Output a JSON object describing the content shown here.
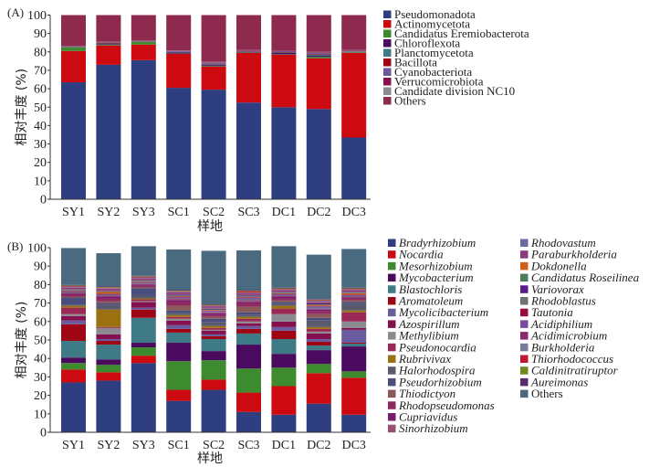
{
  "chart_data": [
    {
      "panel_label": "(A)",
      "type": "bar",
      "stacked": true,
      "title": "",
      "xlabel": "样地",
      "ylabel": "相对丰度 (%)",
      "ylim": [
        0,
        100
      ],
      "yticks": [
        0,
        10,
        20,
        30,
        40,
        50,
        60,
        70,
        80,
        90,
        100
      ],
      "categories": [
        "SY1",
        "SY2",
        "SY3",
        "SC1",
        "SC2",
        "SC3",
        "DC1",
        "DC2",
        "DC3"
      ],
      "legend_italic": false,
      "legend_position": "right",
      "series": [
        {
          "name": "Pseudomonadota",
          "color": "#2e3e80",
          "values": [
            63.5,
            73.0,
            75.5,
            60.5,
            59.5,
            52.5,
            50.0,
            49.0,
            33.5
          ]
        },
        {
          "name": "Actinomycetota",
          "color": "#cc0a0f",
          "values": [
            17.0,
            10.5,
            8.5,
            18.5,
            12.5,
            27.0,
            28.5,
            27.5,
            46.0
          ]
        },
        {
          "name": "Candidatus Eremiobacterota",
          "color": "#3e8a2e",
          "values": [
            2.0,
            0.4,
            1.5,
            0.1,
            0.3,
            0.2,
            0.2,
            0.8,
            0.3
          ]
        },
        {
          "name": "Chloroflexota",
          "color": "#4a0a5e",
          "values": [
            0.1,
            0.4,
            0.1,
            0.6,
            0.6,
            0.4,
            0.7,
            0.6,
            0.2
          ]
        },
        {
          "name": "Planctomycetota",
          "color": "#3f7b86",
          "values": [
            0.1,
            0.3,
            0.1,
            0.2,
            0.4,
            0.2,
            0.3,
            0.5,
            0.3
          ]
        },
        {
          "name": "Bacillota",
          "color": "#9e0613",
          "values": [
            0.1,
            0.4,
            0.1,
            0.1,
            0.3,
            0.3,
            0.2,
            0.3,
            0.3
          ]
        },
        {
          "name": "Cyanobacteriota",
          "color": "#6a5a9e",
          "values": [
            0.1,
            0.2,
            0.1,
            0.5,
            0.4,
            0.2,
            0.3,
            0.6,
            0.2
          ]
        },
        {
          "name": "Verrucomicrobiota",
          "color": "#85104f",
          "values": [
            0.1,
            0.3,
            0.1,
            0.2,
            0.3,
            0.3,
            0.2,
            0.4,
            0.3
          ]
        },
        {
          "name": "Candidate division NC10",
          "color": "#8a8a90",
          "values": [
            0.1,
            0.1,
            0.1,
            0.1,
            0.3,
            0.1,
            0.1,
            0.3,
            0.1
          ]
        },
        {
          "name": "Others",
          "color": "#8e2a4e",
          "values": [
            16.9,
            14.4,
            13.9,
            19.2,
            25.4,
            18.8,
            19.5,
            20.0,
            18.8
          ]
        }
      ]
    },
    {
      "panel_label": "(B)",
      "type": "bar",
      "stacked": true,
      "title": "",
      "xlabel": "样地",
      "ylabel": "相对丰度 (%)",
      "ylim": [
        0,
        100
      ],
      "yticks": [
        0,
        10,
        20,
        30,
        40,
        50,
        60,
        70,
        80,
        90,
        100
      ],
      "categories": [
        "SY1",
        "SY2",
        "SY3",
        "SC1",
        "SC2",
        "SC3",
        "DC1",
        "DC2",
        "DC3"
      ],
      "legend_italic": true,
      "legend_position": "right",
      "series": [
        {
          "name": "Bradyrhizobium",
          "color": "#2e3e80",
          "values": [
            27.0,
            28.0,
            37.5,
            17.0,
            23.0,
            11.0,
            9.5,
            15.5,
            9.5
          ]
        },
        {
          "name": "Nocardia",
          "color": "#cc0a0f",
          "values": [
            7.0,
            4.5,
            4.0,
            6.0,
            5.5,
            10.5,
            15.5,
            16.5,
            20.0
          ]
        },
        {
          "name": "Mesorhizobium",
          "color": "#3e8a2e",
          "values": [
            3.5,
            4.0,
            4.5,
            15.5,
            10.5,
            13.0,
            10.0,
            5.0,
            3.5
          ]
        },
        {
          "name": "Mycobacterium",
          "color": "#4a0a5e",
          "values": [
            3.0,
            3.0,
            2.5,
            10.0,
            5.0,
            13.0,
            7.5,
            7.5,
            13.5
          ]
        },
        {
          "name": "Blastochloris",
          "color": "#3f7b86",
          "values": [
            9.0,
            8.0,
            13.5,
            5.5,
            6.5,
            6.0,
            8.0,
            2.5,
            1.5
          ]
        },
        {
          "name": "Aromatoleum",
          "color": "#9e0613",
          "values": [
            9.0,
            2.0,
            4.5,
            2.0,
            1.5,
            2.5,
            4.5,
            2.0,
            0.5
          ]
        },
        {
          "name": "Mycolicibacterium",
          "color": "#6a5a9e",
          "values": [
            2.0,
            1.0,
            1.0,
            2.0,
            1.0,
            1.5,
            2.0,
            1.5,
            7.0
          ]
        },
        {
          "name": "Azospirillum",
          "color": "#85104f",
          "values": [
            2.5,
            2.5,
            3.0,
            2.5,
            2.0,
            1.5,
            3.0,
            3.0,
            1.0
          ]
        },
        {
          "name": "Methylibium",
          "color": "#8a8a90",
          "values": [
            1.0,
            3.5,
            0.5,
            1.0,
            0.5,
            1.0,
            4.0,
            1.0,
            3.5
          ]
        },
        {
          "name": "Pseudonocardia",
          "color": "#9a2a55",
          "values": [
            3.5,
            0.5,
            1.0,
            1.0,
            1.0,
            1.5,
            3.0,
            1.5,
            5.0
          ]
        },
        {
          "name": "Rubrivivax",
          "color": "#9a7010",
          "values": [
            1.0,
            9.5,
            0.5,
            1.0,
            1.0,
            1.0,
            1.5,
            1.0,
            1.0
          ]
        },
        {
          "name": "Halorhodospira",
          "color": "#5a5a6e",
          "values": [
            0.5,
            2.5,
            1.5,
            1.0,
            2.0,
            1.0,
            1.0,
            3.5,
            3.5
          ]
        },
        {
          "name": "Pseudorhizobium",
          "color": "#4a4e7e",
          "values": [
            4.0,
            1.0,
            4.0,
            1.5,
            2.0,
            1.5,
            1.0,
            1.5,
            1.0
          ]
        },
        {
          "name": "Thiodictyon",
          "color": "#8a5a5a",
          "values": [
            0.5,
            1.0,
            0.5,
            2.5,
            1.0,
            3.0,
            1.0,
            2.0,
            1.0
          ]
        },
        {
          "name": "Rhodopseudomonas",
          "color": "#8e2a5e",
          "values": [
            1.0,
            1.5,
            1.0,
            2.0,
            1.0,
            1.5,
            1.0,
            1.5,
            1.0
          ]
        },
        {
          "name": "Cupriavidus",
          "color": "#7a1a6e",
          "values": [
            0.5,
            1.0,
            0.5,
            1.0,
            1.0,
            1.0,
            1.0,
            1.0,
            0.5
          ]
        },
        {
          "name": "Sinorhizobium",
          "color": "#9a5070",
          "values": [
            0.5,
            0.5,
            0.5,
            1.0,
            0.5,
            1.0,
            0.5,
            0.5,
            0.5
          ]
        },
        {
          "name": "Rhodovastum",
          "color": "#6a6a9e",
          "values": [
            0.5,
            0.5,
            0.5,
            0.5,
            0.5,
            1.0,
            0.5,
            1.0,
            0.5
          ]
        },
        {
          "name": "Paraburkholderia",
          "color": "#8a3a7e",
          "values": [
            0.5,
            0.5,
            0.5,
            0.5,
            0.5,
            0.5,
            0.5,
            0.5,
            0.5
          ]
        },
        {
          "name": "Dokdonella",
          "color": "#d0601a",
          "values": [
            0.3,
            1.0,
            0.3,
            0.3,
            0.3,
            0.3,
            0.3,
            0.5,
            0.8
          ]
        },
        {
          "name": "Candidatus Roseilinea",
          "color": "#4e7a5e",
          "values": [
            0.3,
            0.3,
            0.3,
            0.3,
            0.3,
            0.3,
            0.3,
            0.3,
            0.3
          ]
        },
        {
          "name": "Variovorax",
          "color": "#5a1a8e",
          "values": [
            0.3,
            0.3,
            0.3,
            0.5,
            0.3,
            0.5,
            0.3,
            0.5,
            0.3
          ]
        },
        {
          "name": "Rhodoblastus",
          "color": "#6e7270",
          "values": [
            0.3,
            0.3,
            0.3,
            0.3,
            0.3,
            0.3,
            0.3,
            0.3,
            0.3
          ]
        },
        {
          "name": "Tautonia",
          "color": "#9a0a40",
          "values": [
            0.3,
            0.3,
            0.3,
            0.3,
            0.3,
            0.3,
            0.3,
            0.3,
            0.3
          ]
        },
        {
          "name": "Acidiphilium",
          "color": "#7a4a9e",
          "values": [
            0.3,
            0.3,
            0.3,
            0.3,
            0.3,
            0.3,
            0.3,
            0.3,
            0.3
          ]
        },
        {
          "name": "Acidimicrobium",
          "color": "#8a2a6e",
          "values": [
            0.3,
            0.3,
            0.3,
            0.3,
            0.3,
            0.3,
            0.3,
            0.3,
            0.3
          ]
        },
        {
          "name": "Burkholderia",
          "color": "#7a7a9a",
          "values": [
            0.3,
            0.3,
            0.3,
            0.3,
            0.3,
            0.3,
            0.3,
            0.3,
            0.3
          ]
        },
        {
          "name": "Thiorhodococcus",
          "color": "#c0182e",
          "values": [
            0.3,
            0.3,
            0.3,
            0.3,
            0.3,
            0.8,
            0.3,
            0.3,
            0.3
          ]
        },
        {
          "name": "Caldinitratiruptor",
          "color": "#6e8a1e",
          "values": [
            0.3,
            0.3,
            0.3,
            0.3,
            0.3,
            0.3,
            0.3,
            0.3,
            0.3
          ]
        },
        {
          "name": "Aureimonas",
          "color": "#5a2a6e",
          "values": [
            0.3,
            0.3,
            0.3,
            0.3,
            0.3,
            0.3,
            0.3,
            0.3,
            0.3
          ]
        },
        {
          "name": "Others",
          "color": "#4a6a80",
          "values": [
            20.0,
            18.0,
            16.0,
            22.0,
            29.0,
            21.5,
            22.5,
            24.0,
            21.0
          ]
        }
      ]
    }
  ]
}
